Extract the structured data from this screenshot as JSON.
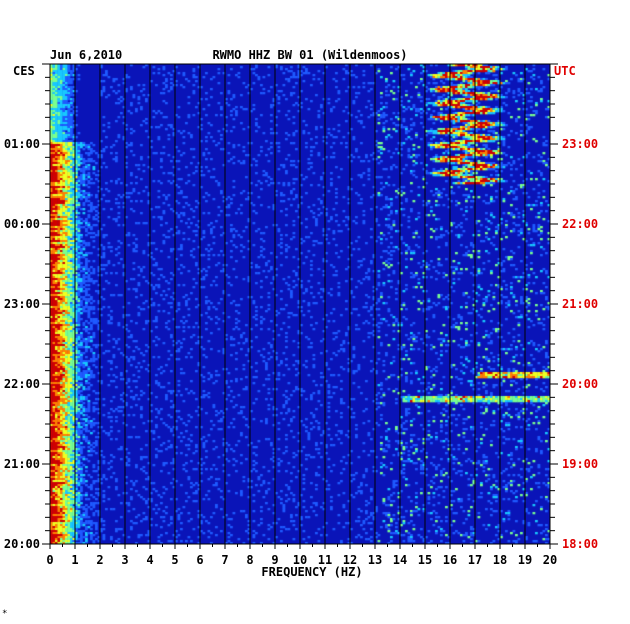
{
  "chart_data": {
    "type": "heatmap",
    "title_date": "Jun 6,2010",
    "title_station": "RWMO HHZ BW 01 (Wildenmoos)",
    "xlabel": "FREQUENCY (HZ)",
    "x_ticks": [
      "0",
      "1",
      "2",
      "3",
      "4",
      "5",
      "6",
      "7",
      "8",
      "9",
      "10",
      "11",
      "12",
      "13",
      "14",
      "15",
      "16",
      "17",
      "18",
      "19",
      "20"
    ],
    "xlim": [
      0,
      20
    ],
    "left_timezone": "CES",
    "right_timezone": "UTC",
    "left_time_ticks": [
      "01:00",
      "00:00",
      "23:00",
      "22:00",
      "21:00",
      "20:00"
    ],
    "right_time_ticks": [
      "23:00",
      "22:00",
      "21:00",
      "20:00",
      "19:00",
      "18:00"
    ],
    "time_span_hours": 6,
    "grid": true,
    "colormap": [
      "#00007a",
      "#0010c8",
      "#1e5aff",
      "#18c8ff",
      "#78ff90",
      "#f0ff20",
      "#ff8000",
      "#d00000"
    ],
    "background_color": "#0a14b8",
    "utc_label_color": "#e00000",
    "footnote": "*"
  }
}
